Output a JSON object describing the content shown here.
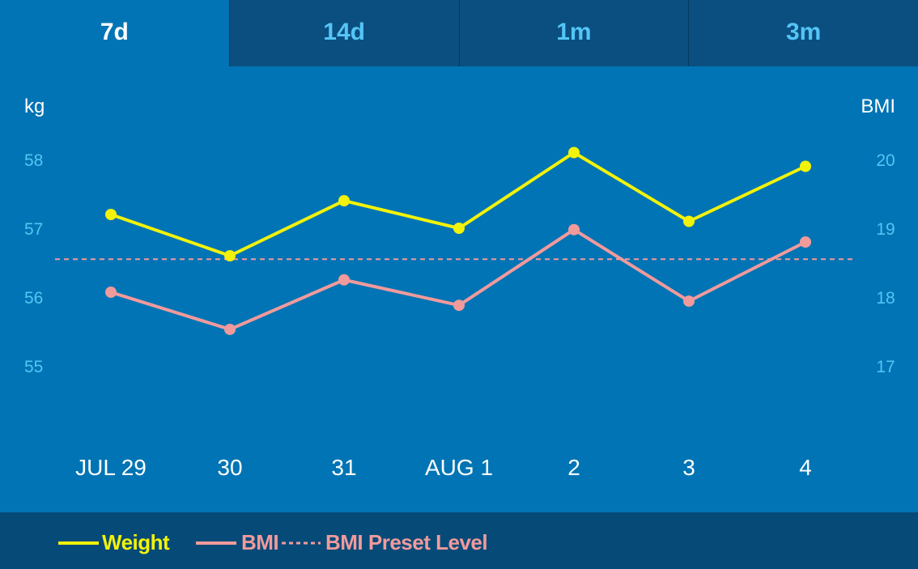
{
  "tabs": [
    {
      "label": "7d",
      "active": true
    },
    {
      "label": "14d",
      "active": false
    },
    {
      "label": "1m",
      "active": false
    },
    {
      "label": "3m",
      "active": false
    }
  ],
  "chart_data": {
    "type": "line",
    "categories": [
      "JUL 29",
      "30",
      "31",
      "AUG 1",
      "2",
      "3",
      "4"
    ],
    "left_axis": {
      "label": "kg",
      "ticks": [
        55,
        56,
        57,
        58
      ],
      "range": [
        55,
        58
      ]
    },
    "right_axis": {
      "label": "BMI",
      "ticks": [
        17,
        18,
        19,
        20
      ],
      "range": [
        17,
        20
      ]
    },
    "series": [
      {
        "name": "Weight",
        "axis": "left",
        "color": "#f2f20a",
        "values": [
          57.2,
          56.6,
          57.4,
          57.0,
          58.1,
          57.1,
          57.9
        ]
      },
      {
        "name": "BMI",
        "axis": "right",
        "color": "#f19a9c",
        "values": [
          18.07,
          17.53,
          18.25,
          17.88,
          18.98,
          17.94,
          18.8
        ]
      }
    ],
    "reference_lines": [
      {
        "name": "BMI Preset Level",
        "axis": "right",
        "value": 18.55,
        "color": "#f19a9c",
        "style": "dashed"
      }
    ]
  },
  "legend": {
    "weight_label": "Weight",
    "bmi_label": "BMI",
    "preset_label": "BMI Preset Level"
  },
  "colors": {
    "background": "#0074b4",
    "tab_bar": "#0a4f80",
    "tick_text": "#54c5f5",
    "weight": "#f2f20a",
    "bmi": "#f19a9c"
  }
}
